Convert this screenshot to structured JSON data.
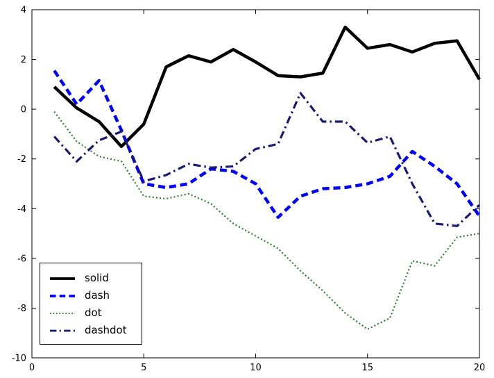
{
  "figure": {
    "background": "#ffffff",
    "frame_color": "#000000"
  },
  "chart_data": {
    "type": "line",
    "title": "",
    "xlabel": "",
    "ylabel": "",
    "grid": false,
    "legend_position": "lower left",
    "xlim": [
      0,
      20
    ],
    "ylim": [
      -10,
      4
    ],
    "xticks": [
      0,
      5,
      10,
      15,
      20
    ],
    "yticks": [
      -10,
      -8,
      -6,
      -4,
      -2,
      0,
      2,
      4
    ],
    "x": [
      1,
      2,
      3,
      4,
      5,
      6,
      7,
      8,
      9,
      10,
      11,
      12,
      13,
      14,
      15,
      16,
      17,
      18,
      19,
      20
    ],
    "series": [
      {
        "name": "solid",
        "line_style": "solid",
        "color": "#000000",
        "values": [
          0.9,
          0.05,
          -0.5,
          -1.5,
          -0.6,
          1.7,
          2.15,
          1.9,
          2.4,
          1.9,
          1.35,
          1.3,
          1.45,
          3.3,
          2.45,
          2.6,
          2.3,
          2.65,
          2.75,
          1.2
        ]
      },
      {
        "name": "dash",
        "line_style": "dash",
        "color": "#0000ff",
        "values": [
          1.55,
          0.2,
          1.15,
          -0.85,
          -3.0,
          -3.15,
          -3.0,
          -2.4,
          -2.5,
          -3.0,
          -4.35,
          -3.5,
          -3.2,
          -3.15,
          -3.0,
          -2.7,
          -1.7,
          -2.3,
          -3.0,
          -4.3
        ]
      },
      {
        "name": "dot",
        "line_style": "dot",
        "color": "#2f7d2f",
        "values": [
          -0.1,
          -1.3,
          -1.9,
          -2.1,
          -3.5,
          -3.6,
          -3.4,
          -3.8,
          -4.6,
          -5.1,
          -5.6,
          -6.5,
          -7.3,
          -8.2,
          -8.85,
          -8.4,
          -6.1,
          -6.3,
          -5.15,
          -5.0
        ]
      },
      {
        "name": "dashdot",
        "line_style": "dashdot",
        "color": "#191970",
        "values": [
          -1.1,
          -2.1,
          -1.25,
          -0.9,
          -2.9,
          -2.65,
          -2.2,
          -2.35,
          -2.3,
          -1.6,
          -1.4,
          0.65,
          -0.5,
          -0.5,
          -1.35,
          -1.1,
          -3.0,
          -4.6,
          -4.7,
          -3.85
        ]
      }
    ]
  }
}
